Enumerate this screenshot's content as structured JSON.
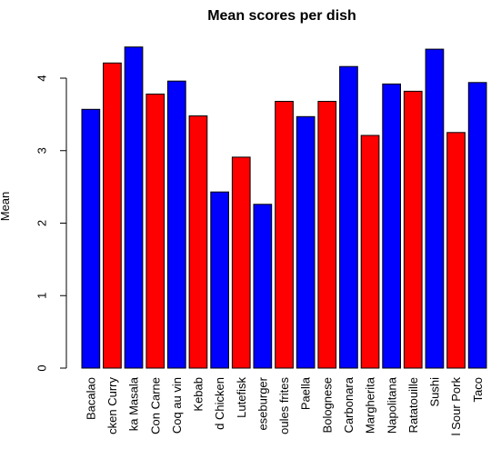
{
  "chart_data": {
    "type": "bar",
    "title": "Mean scores per dish",
    "xlabel": "",
    "ylabel": "Mean",
    "ylim": [
      0,
      4.5
    ],
    "yticks": [
      0,
      1,
      2,
      3,
      4
    ],
    "grid": false,
    "legend": "none",
    "categories": [
      "Bacalao",
      "cken Curry",
      "ka Masala",
      "Con Carne",
      "Coq au vin",
      "Kebab",
      "d Chicken",
      "Lutefisk",
      "eseburger",
      "oules frites",
      "Paella",
      "Bolognese",
      "Carbonara",
      "Margherita",
      "Napolitana",
      "Ratatouille",
      "Sushi",
      "l Sour Pork",
      "Taco"
    ],
    "values": [
      3.57,
      4.21,
      4.43,
      3.78,
      3.96,
      3.48,
      2.43,
      2.91,
      2.26,
      3.68,
      3.47,
      3.68,
      4.16,
      3.21,
      3.92,
      3.82,
      4.4,
      3.25,
      3.94
    ],
    "colors": [
      "#0000ff",
      "#ff0000",
      "#0000ff",
      "#ff0000",
      "#0000ff",
      "#ff0000",
      "#0000ff",
      "#ff0000",
      "#0000ff",
      "#ff0000",
      "#0000ff",
      "#ff0000",
      "#0000ff",
      "#ff0000",
      "#0000ff",
      "#ff0000",
      "#0000ff",
      "#ff0000",
      "#0000ff"
    ]
  }
}
